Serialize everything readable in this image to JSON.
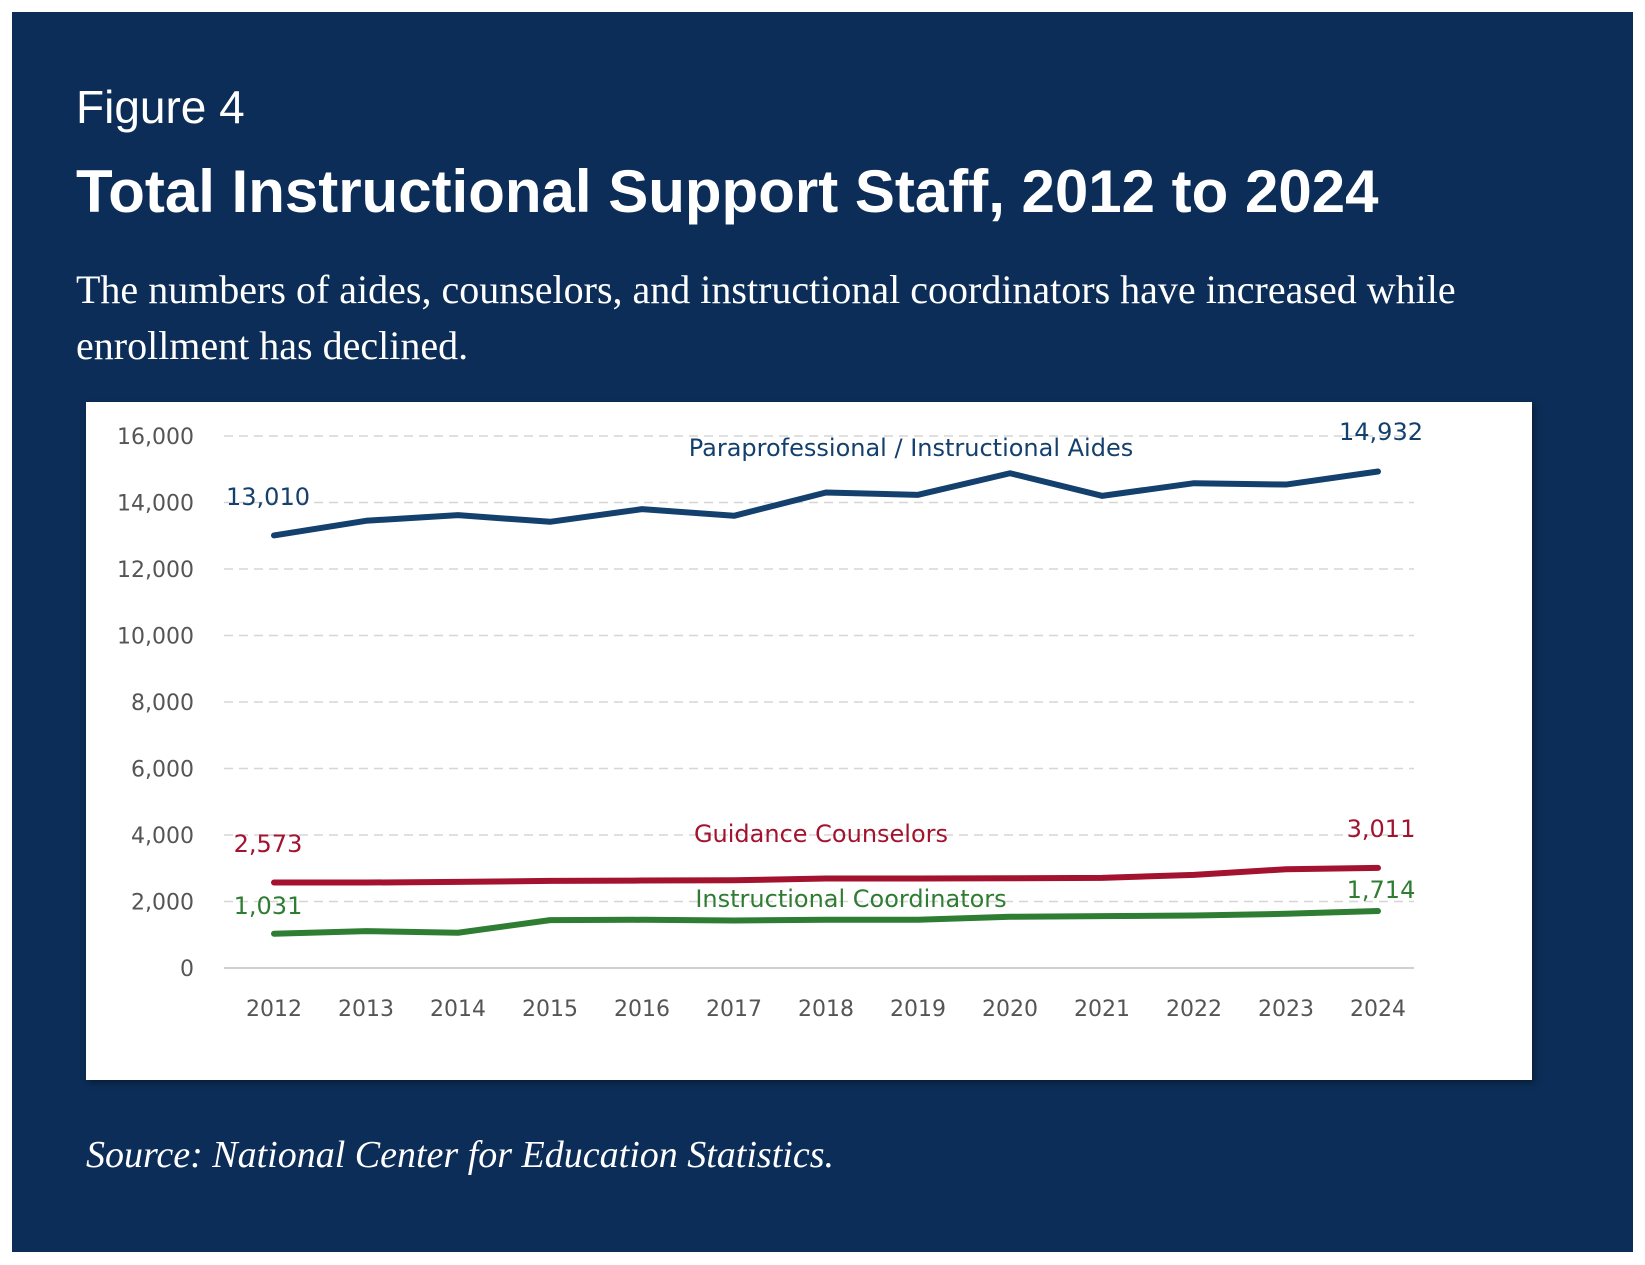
{
  "header": {
    "figure_label": "Figure 4",
    "title": "Total Instructional Support Staff, 2012 to 2024",
    "subtitle": "The numbers of aides, counselors, and instructional coordinators have increased while enrollment has declined."
  },
  "source": "Source: National Center for Education Statistics.",
  "colors": {
    "background": "#0c2d57",
    "aides": "#14406e",
    "counselors": "#a3132f",
    "coordinators": "#2e7d32"
  },
  "chart_data": {
    "type": "line",
    "x": [
      "2012",
      "2013",
      "2014",
      "2015",
      "2016",
      "2017",
      "2018",
      "2019",
      "2020",
      "2021",
      "2022",
      "2023",
      "2024"
    ],
    "ylim": [
      0,
      16000
    ],
    "yticks": [
      0,
      2000,
      4000,
      6000,
      8000,
      10000,
      12000,
      14000,
      16000
    ],
    "ytick_labels": [
      "0",
      "2,000",
      "4,000",
      "6,000",
      "8,000",
      "10,000",
      "12,000",
      "14,000",
      "16,000"
    ],
    "grid": true,
    "legend": "none (inline labels)",
    "series": [
      {
        "name": "Paraprofessional / Instructional Aides",
        "color": "#14406e",
        "values": [
          13010,
          13450,
          13620,
          13420,
          13800,
          13600,
          14300,
          14230,
          14880,
          14200,
          14580,
          14540,
          14932
        ],
        "start_label": "13,010",
        "end_label": "14,932"
      },
      {
        "name": "Guidance Counselors",
        "color": "#a3132f",
        "values": [
          2573,
          2570,
          2590,
          2620,
          2630,
          2640,
          2690,
          2690,
          2700,
          2710,
          2800,
          2970,
          3011
        ],
        "start_label": "2,573",
        "end_label": "3,011"
      },
      {
        "name": "Instructional Coordinators",
        "color": "#2e7d32",
        "values": [
          1031,
          1110,
          1060,
          1440,
          1450,
          1430,
          1450,
          1450,
          1540,
          1560,
          1580,
          1630,
          1714
        ],
        "start_label": "1,031",
        "end_label": "1,714"
      }
    ]
  }
}
